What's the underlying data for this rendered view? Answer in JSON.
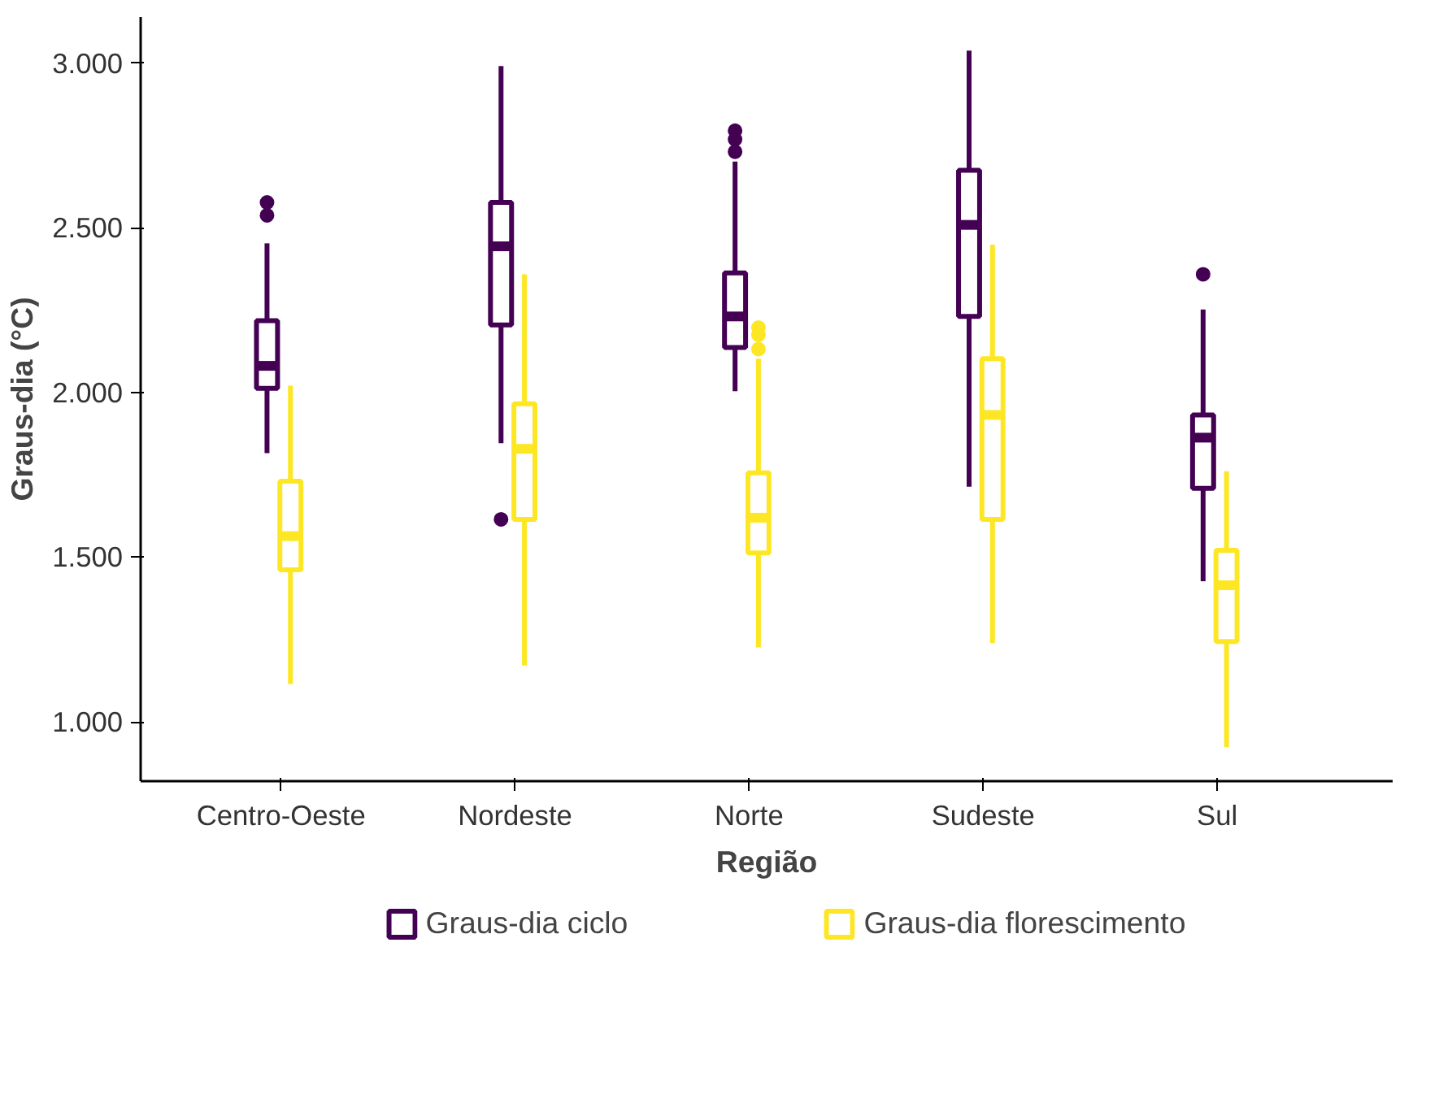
{
  "chart_data": {
    "type": "box",
    "xlabel": "Região",
    "ylabel": "Graus-dia (°C)",
    "categories": [
      "Centro-Oeste",
      "Nordeste",
      "Norte",
      "Sudeste",
      "Sul"
    ],
    "ylim": [
      820,
      3140
    ],
    "yticks": [
      {
        "value": 1000,
        "label": "1.000"
      },
      {
        "value": 1500,
        "label": "1.500"
      },
      {
        "value": 2000,
        "label": "2.000"
      },
      {
        "value": 2500,
        "label": "2.500"
      },
      {
        "value": 3000,
        "label": "3.000"
      }
    ],
    "grid": false,
    "legend": "bottom",
    "series": [
      {
        "name": "Graus-dia ciclo",
        "color": "#440154",
        "boxes": [
          {
            "low": 1816,
            "q1": 2013,
            "median": 2081,
            "q3": 2218,
            "high": 2453,
            "outliers": [
              2577,
              2538
            ]
          },
          {
            "low": 1846,
            "q1": 2205,
            "median": 2444,
            "q3": 2577,
            "high": 2991,
            "outliers": [
              1615
            ]
          },
          {
            "low": 2004,
            "q1": 2137,
            "median": 2231,
            "q3": 2363,
            "high": 2701,
            "outliers": [
              2795,
              2769,
              2731
            ]
          },
          {
            "low": 1714,
            "q1": 2231,
            "median": 2509,
            "q3": 2675,
            "high": 3038
          },
          {
            "low": 1427,
            "q1": 1709,
            "median": 1863,
            "q3": 1932,
            "high": 2252,
            "outliers": [
              2359
            ]
          }
        ]
      },
      {
        "name": "Graus-dia florescimento",
        "color": "#fde725",
        "boxes": [
          {
            "low": 1115,
            "q1": 1462,
            "median": 1564,
            "q3": 1731,
            "high": 2021
          },
          {
            "low": 1171,
            "q1": 1615,
            "median": 1829,
            "q3": 1966,
            "high": 2359
          },
          {
            "low": 1226,
            "q1": 1513,
            "median": 1620,
            "q3": 1756,
            "high": 2103,
            "outliers": [
              2197,
              2175,
              2132
            ]
          },
          {
            "low": 1239,
            "q1": 1615,
            "median": 1932,
            "q3": 2103,
            "high": 2449
          },
          {
            "low": 923,
            "q1": 1244,
            "median": 1415,
            "q3": 1521,
            "high": 1761
          }
        ]
      }
    ]
  }
}
